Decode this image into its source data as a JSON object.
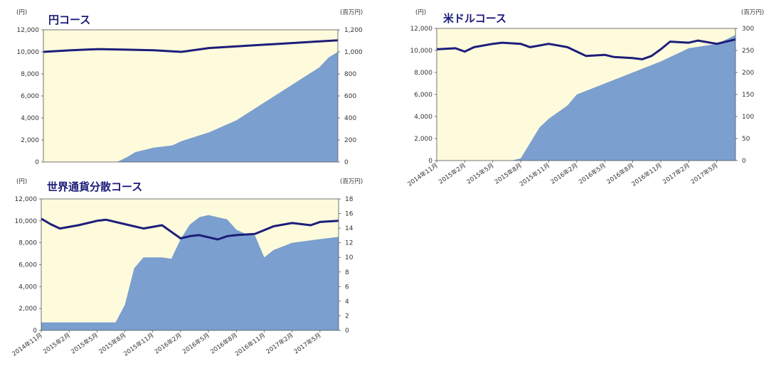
{
  "chart_data": [
    {
      "type": "area",
      "title": "円コース",
      "left_unit": "(円)",
      "right_unit": "(百万円)",
      "left_axis": {
        "ylim": [
          0,
          12000
        ],
        "ticks": [
          "0",
          "2,000",
          "4,000",
          "6,000",
          "8,000",
          "10,000",
          "12,000"
        ]
      },
      "right_axis": {
        "ylim": [
          0,
          1200
        ],
        "ticks": [
          "0",
          "200",
          "400",
          "600",
          "800",
          "1,000",
          "1,200"
        ]
      },
      "x_range": [
        "2014-11",
        "2017-07"
      ],
      "x_ticks": [],
      "grid": false,
      "colors": {
        "background": "#fdfbdc",
        "area": "#7b9fcf",
        "line": "#1d1d7a"
      },
      "series": [
        {
          "axis": "right",
          "style": "area",
          "x": [
            "2014-11",
            "2015-02",
            "2015-05",
            "2015-07",
            "2015-08",
            "2015-09",
            "2015-11",
            "2016-01",
            "2016-02",
            "2016-05",
            "2016-08",
            "2016-11",
            "2017-02",
            "2017-05",
            "2017-06",
            "2017-07"
          ],
          "values": [
            0,
            0,
            0,
            0,
            40,
            90,
            130,
            150,
            190,
            270,
            380,
            540,
            700,
            860,
            950,
            1000
          ]
        },
        {
          "axis": "left",
          "style": "line",
          "x": [
            "2014-11",
            "2015-02",
            "2015-05",
            "2015-08",
            "2015-11",
            "2016-02",
            "2016-05",
            "2016-08",
            "2016-11",
            "2017-02",
            "2017-05",
            "2017-07"
          ],
          "values": [
            10000,
            10150,
            10250,
            10200,
            10150,
            10000,
            10350,
            10500,
            10650,
            10800,
            10950,
            11050
          ]
        }
      ]
    },
    {
      "type": "area",
      "title": "米ドルコース",
      "left_unit": "(円)",
      "right_unit": "(百万円)",
      "left_axis": {
        "ylim": [
          0,
          12000
        ],
        "ticks": [
          "0",
          "2,000",
          "4,000",
          "6,000",
          "8,000",
          "10,000",
          "12,000"
        ]
      },
      "right_axis": {
        "ylim": [
          0,
          300
        ],
        "ticks": [
          "0",
          "50",
          "100",
          "150",
          "200",
          "250",
          "300"
        ]
      },
      "x_range": [
        "2014-11",
        "2017-07"
      ],
      "x_ticks": [
        "2014年11月",
        "2015年2月",
        "2015年5月",
        "2015年8月",
        "2015年11月",
        "2016年2月",
        "2016年5月",
        "2016年8月",
        "2016年11月",
        "2017年2月",
        "2017年5月"
      ],
      "grid": false,
      "colors": {
        "background": "#fdfbdc",
        "area": "#7b9fcf",
        "line": "#1d1d7a"
      },
      "series": [
        {
          "axis": "right",
          "style": "area",
          "x": [
            "2014-11",
            "2015-02",
            "2015-05",
            "2015-07",
            "2015-08",
            "2015-09",
            "2015-10",
            "2015-11",
            "2016-01",
            "2016-02",
            "2016-05",
            "2016-08",
            "2016-11",
            "2017-02",
            "2017-05",
            "2017-07"
          ],
          "values": [
            0,
            0,
            0,
            0,
            5,
            40,
            75,
            95,
            125,
            150,
            175,
            200,
            225,
            255,
            265,
            285
          ]
        },
        {
          "axis": "left",
          "style": "line",
          "x": [
            "2014-11",
            "2015-01",
            "2015-02",
            "2015-03",
            "2015-05",
            "2015-06",
            "2015-08",
            "2015-09",
            "2015-11",
            "2016-01",
            "2016-02",
            "2016-03",
            "2016-05",
            "2016-06",
            "2016-08",
            "2016-09",
            "2016-10",
            "2016-11",
            "2016-12",
            "2017-02",
            "2017-03",
            "2017-05",
            "2017-07"
          ],
          "values": [
            10100,
            10200,
            9900,
            10300,
            10600,
            10700,
            10600,
            10300,
            10600,
            10300,
            9900,
            9500,
            9600,
            9400,
            9300,
            9200,
            9500,
            10100,
            10800,
            10700,
            10900,
            10600,
            11000
          ]
        }
      ]
    },
    {
      "type": "area",
      "title": "世界通貨分散コース",
      "left_unit": "(円)",
      "right_unit": "(百万円)",
      "left_axis": {
        "ylim": [
          0,
          12000
        ],
        "ticks": [
          "0",
          "2,000",
          "4,000",
          "6,000",
          "8,000",
          "10,000",
          "12,000"
        ]
      },
      "right_axis": {
        "ylim": [
          0,
          18
        ],
        "ticks": [
          "0",
          "2",
          "4",
          "6",
          "8",
          "10",
          "12",
          "14",
          "16",
          "18"
        ]
      },
      "x_range": [
        "2014-11",
        "2017-07"
      ],
      "x_ticks": [
        "2014年11月",
        "2015年2月",
        "2015年5月",
        "2015年8月",
        "2015年11月",
        "2016年2月",
        "2016年5月",
        "2016年8月",
        "2016年11月",
        "2017年2月",
        "2017年5月"
      ],
      "grid": false,
      "colors": {
        "background": "#fdfbdc",
        "area": "#7b9fcf",
        "line": "#1d1d7a"
      },
      "series": [
        {
          "axis": "right",
          "style": "area",
          "x": [
            "2014-11",
            "2015-07",
            "2015-08",
            "2015-09",
            "2015-10",
            "2015-12",
            "2016-01",
            "2016-02",
            "2016-03",
            "2016-04",
            "2016-05",
            "2016-06",
            "2016-07",
            "2016-08",
            "2016-09",
            "2016-10",
            "2016-11",
            "2016-12",
            "2017-02",
            "2017-05",
            "2017-07"
          ],
          "values": [
            1.1,
            1.1,
            3.5,
            8.5,
            10,
            10,
            9.8,
            12.5,
            14.5,
            15.5,
            15.8,
            15.5,
            15.2,
            13.8,
            13.2,
            13,
            10,
            11,
            12,
            12.5,
            12.8
          ]
        },
        {
          "axis": "left",
          "style": "line",
          "x": [
            "2014-11",
            "2014-12",
            "2015-01",
            "2015-03",
            "2015-05",
            "2015-06",
            "2015-08",
            "2015-10",
            "2015-12",
            "2016-01",
            "2016-02",
            "2016-03",
            "2016-04",
            "2016-05",
            "2016-06",
            "2016-07",
            "2016-08",
            "2016-10",
            "2016-12",
            "2017-02",
            "2017-04",
            "2017-05",
            "2017-07"
          ],
          "values": [
            10200,
            9700,
            9300,
            9600,
            10000,
            10100,
            9700,
            9300,
            9600,
            9000,
            8400,
            8600,
            8700,
            8500,
            8300,
            8600,
            8700,
            8800,
            9500,
            9800,
            9600,
            9900,
            10000
          ]
        }
      ]
    }
  ]
}
